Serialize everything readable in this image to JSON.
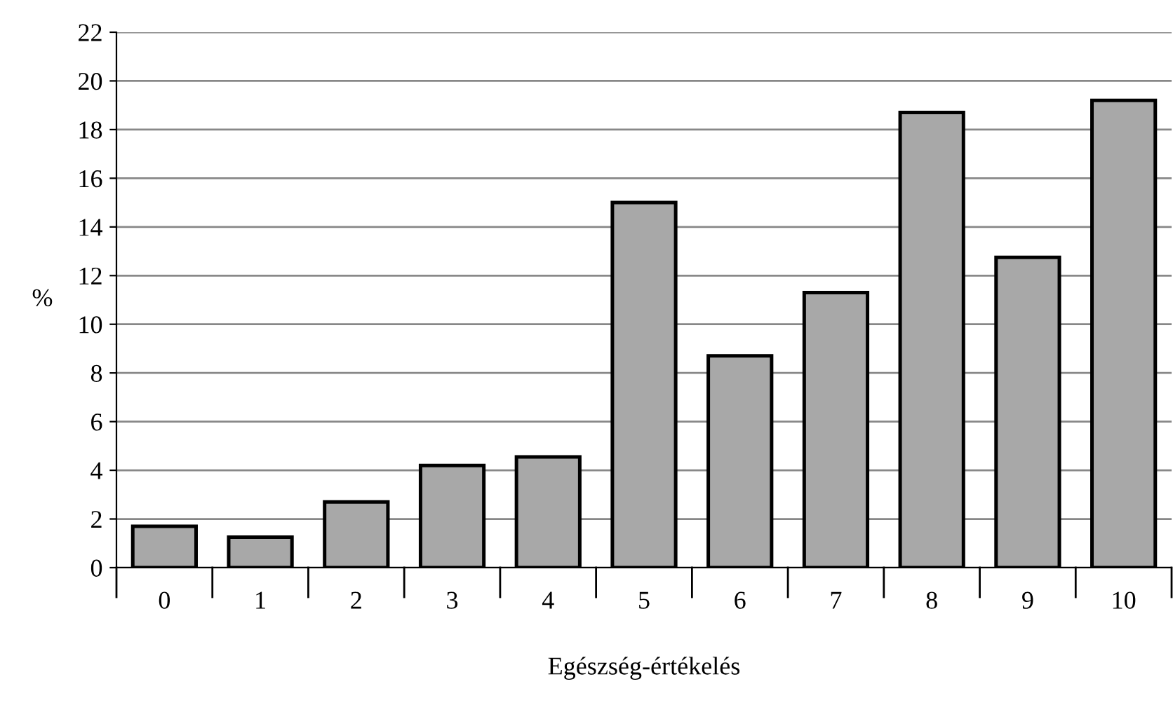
{
  "chart_data": {
    "type": "bar",
    "xlabel": "Egészség-értékelés",
    "ylabel": "%",
    "categories": [
      "0",
      "1",
      "2",
      "3",
      "4",
      "5",
      "6",
      "7",
      "8",
      "9",
      "10"
    ],
    "values": [
      1.7,
      1.25,
      2.7,
      4.2,
      4.55,
      15.0,
      8.7,
      11.3,
      18.7,
      12.75,
      19.2
    ],
    "color": "#a8a8a8",
    "ylim": [
      0,
      22
    ],
    "yticks": [
      0,
      2,
      4,
      6,
      8,
      10,
      12,
      14,
      16,
      18,
      20,
      22
    ],
    "grid": "y"
  }
}
